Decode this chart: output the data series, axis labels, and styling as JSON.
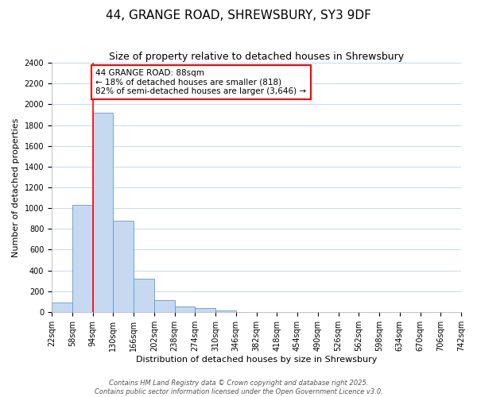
{
  "title": "44, GRANGE ROAD, SHREWSBURY, SY3 9DF",
  "subtitle": "Size of property relative to detached houses in Shrewsbury",
  "xlabel": "Distribution of detached houses by size in Shrewsbury",
  "ylabel": "Number of detached properties",
  "bar_values": [
    90,
    1030,
    1920,
    880,
    320,
    115,
    55,
    35,
    15,
    0,
    0,
    0,
    0,
    0,
    0,
    0,
    0,
    0,
    0,
    0
  ],
  "bin_labels": [
    "22sqm",
    "58sqm",
    "94sqm",
    "130sqm",
    "166sqm",
    "202sqm",
    "238sqm",
    "274sqm",
    "310sqm",
    "346sqm",
    "382sqm",
    "418sqm",
    "454sqm",
    "490sqm",
    "526sqm",
    "562sqm",
    "598sqm",
    "634sqm",
    "670sqm",
    "706sqm",
    "742sqm"
  ],
  "bar_color": "#c6d9f0",
  "bar_edge_color": "#5b9bd5",
  "vline_x": 2.0,
  "vline_color": "#ff0000",
  "annotation_text": "44 GRANGE ROAD: 88sqm\n← 18% of detached houses are smaller (818)\n82% of semi-detached houses are larger (3,646) →",
  "annotation_box_color": "#ffffff",
  "annotation_box_edge_color": "#ff0000",
  "ylim": [
    0,
    2400
  ],
  "yticks": [
    0,
    200,
    400,
    600,
    800,
    1000,
    1200,
    1400,
    1600,
    1800,
    2000,
    2200,
    2400
  ],
  "footer_line1": "Contains HM Land Registry data © Crown copyright and database right 2025.",
  "footer_line2": "Contains public sector information licensed under the Open Government Licence v3.0.",
  "background_color": "#ffffff",
  "grid_color": "#c8d8ec",
  "title_fontsize": 11,
  "subtitle_fontsize": 9,
  "axis_label_fontsize": 8,
  "tick_fontsize": 7,
  "annotation_fontsize": 7.5,
  "footer_fontsize": 6
}
